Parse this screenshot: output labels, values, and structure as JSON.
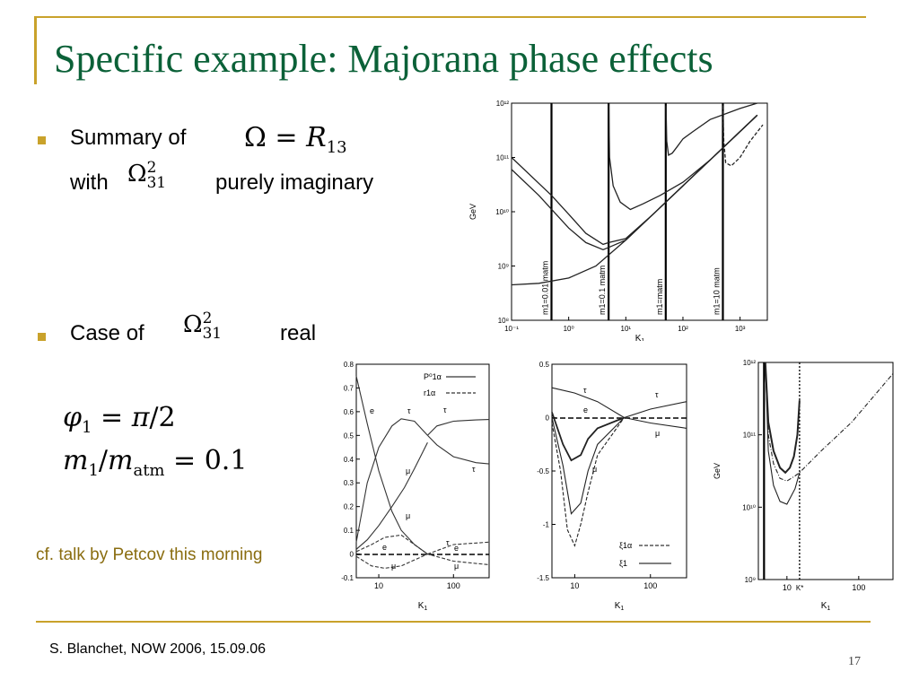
{
  "title": "Specific example: Majorana phase effects",
  "bullets": [
    {
      "pre": "Summary of",
      "math": "Ω = R13"
    },
    {
      "pre": "with",
      "math": "Ω²31",
      "post": "purely imaginary"
    },
    {
      "pre": "Case of",
      "math": "Ω²31",
      "post": "real"
    }
  ],
  "equations": [
    "φ1 = π/2",
    "m1/matm = 0.1"
  ],
  "cf_note": "cf. talk by Petcov this morning",
  "footer": "S. Blanchet, NOW 2006, 15.09.06",
  "page_number": "17",
  "colors": {
    "title": "#0b6138",
    "accent": "#c9a22b",
    "cf": "#8a6d10"
  },
  "chart_data": [
    {
      "type": "line",
      "xlabel": "K1",
      "ylabel": "GeV",
      "x_scale": "log",
      "y_scale": "log",
      "xlim": [
        0.1,
        3000
      ],
      "ylim": [
        100000000.0,
        1000000000000.0
      ],
      "x_ticks": [
        "10⁻¹",
        "10⁰",
        "10¹",
        "10²",
        "10³"
      ],
      "y_ticks": [
        "10⁸",
        "10⁹",
        "10¹⁰",
        "10¹¹",
        "10¹²"
      ],
      "vertical_lines": [
        {
          "x": 0.5,
          "label": "m1=0.01 matm"
        },
        {
          "x": 5,
          "label": "m1=0.1 matm"
        },
        {
          "x": 50,
          "label": "m1=matm"
        },
        {
          "x": 500,
          "label": "m1=10 matm"
        }
      ],
      "series": [
        {
          "x": [
            0.1,
            0.3,
            1,
            3,
            10,
            30,
            100,
            300,
            1000,
            2000
          ],
          "y": [
            450000000.0,
            480000000.0,
            600000000.0,
            1000000000.0,
            3000000000.0,
            9000000000.0,
            30000000000.0,
            90000000000.0,
            300000000000.0,
            600000000000.0
          ]
        },
        {
          "x": [
            0.1,
            0.3,
            1,
            2,
            4,
            5,
            10,
            30,
            100,
            300,
            1000,
            2000
          ],
          "y": [
            60000000000.0,
            20000000000.0,
            5000000000.0,
            2700000000.0,
            2000000000.0,
            2200000000.0,
            3000000000.0,
            9000000000.0,
            30000000000.0,
            90000000000.0,
            300000000000.0,
            600000000000.0
          ]
        },
        {
          "x": [
            0.1,
            0.5,
            1,
            2,
            4,
            5,
            10,
            30,
            100,
            300,
            1000,
            2000
          ],
          "y": [
            100000000000.0,
            20000000000.0,
            9000000000.0,
            4000000000.0,
            2500000000.0,
            2700000000.0,
            3200000000.0,
            9000000000.0,
            30000000000.0,
            90000000000.0,
            300000000000.0,
            600000000000.0
          ]
        },
        {
          "x": [
            5.05,
            5.2,
            6,
            8,
            12,
            20,
            40,
            100,
            300,
            1000,
            2000
          ],
          "y": [
            900000000000.0,
            100000000000.0,
            30000000000.0,
            15000000000.0,
            11000000000.0,
            14000000000.0,
            20000000000.0,
            35000000000.0,
            90000000000.0,
            300000000000.0,
            600000000000.0
          ]
        },
        {
          "x": [
            50.5,
            52,
            56,
            65,
            80,
            100,
            150,
            300,
            1000,
            2000
          ],
          "y": [
            900000000000.0,
            200000000000.0,
            110000000000.0,
            120000000000.0,
            160000000000.0,
            220000000000.0,
            300000000000.0,
            500000000000.0,
            800000000000.0,
            1000000000000.0
          ]
        },
        {
          "x": [
            500.5,
            520,
            560,
            700,
            1000,
            1500,
            2500
          ],
          "y": [
            900000000000.0,
            200000000000.0,
            80000000000.0,
            70000000000.0,
            100000000000.0,
            200000000000.0,
            400000000000.0
          ]
        }
      ]
    },
    {
      "type": "line",
      "xlabel": "K1",
      "x_scale": "log",
      "xlim": [
        5,
        300
      ],
      "ylim": [
        -0.1,
        0.8
      ],
      "x_ticks": [
        "10",
        "100"
      ],
      "y_ticks": [
        "-0.1",
        "0",
        "0.1",
        "0.2",
        "0.3",
        "0.4",
        "0.5",
        "0.6",
        "0.7",
        "0.8"
      ],
      "legend": [
        "P⁰1α",
        "r1α"
      ],
      "annotations": [
        "e",
        "τ",
        "μ",
        "μ",
        "τ",
        "τ",
        "e",
        "μ",
        "τ",
        "e",
        "μ"
      ],
      "series": [
        {
          "x": [
            5,
            7,
            10,
            15,
            20,
            30,
            45
          ],
          "y": [
            0.75,
            0.55,
            0.35,
            0.18,
            0.1,
            0.04,
            0.0
          ]
        },
        {
          "x": [
            5,
            7,
            10,
            15,
            20,
            30,
            45
          ],
          "y": [
            0.05,
            0.3,
            0.45,
            0.54,
            0.57,
            0.56,
            0.5
          ]
        },
        {
          "x": [
            5,
            7,
            10,
            15,
            22,
            30,
            45
          ],
          "y": [
            0.02,
            0.06,
            0.12,
            0.2,
            0.28,
            0.36,
            0.47
          ]
        },
        {
          "x": [
            45,
            60,
            100,
            200,
            300
          ],
          "y": [
            0.5,
            0.54,
            0.56,
            0.565,
            0.567
          ]
        },
        {
          "x": [
            45,
            60,
            100,
            200,
            300
          ],
          "y": [
            0.5,
            0.46,
            0.41,
            0.385,
            0.38
          ]
        }
      ]
    },
    {
      "type": "line",
      "xlabel": "K1",
      "x_scale": "log",
      "xlim": [
        5,
        300
      ],
      "ylim": [
        -1.5,
        0.5
      ],
      "x_ticks": [
        "10",
        "100"
      ],
      "y_ticks": [
        "-1.5",
        "-1",
        "-0.5",
        "0",
        "0.5"
      ],
      "legend": [
        "ξ1α",
        "ξ1"
      ],
      "annotations": [
        "τ",
        "e",
        "μ",
        "τ",
        "μ"
      ],
      "series": [
        {
          "x": [
            5,
            7,
            9,
            12,
            15,
            20,
            45
          ],
          "y": [
            0.05,
            -0.25,
            -0.4,
            -0.35,
            -0.2,
            -0.1,
            0.0
          ]
        },
        {
          "x": [
            5,
            7,
            9,
            12,
            15,
            20,
            45
          ],
          "y": [
            0.0,
            -0.45,
            -0.9,
            -0.8,
            -0.5,
            -0.25,
            0.0
          ]
        },
        {
          "x": [
            5,
            6.5,
            8,
            10,
            12,
            15,
            20,
            45
          ],
          "y": [
            -0.05,
            -0.5,
            -1.05,
            -1.2,
            -1.0,
            -0.7,
            -0.35,
            0.0
          ]
        },
        {
          "x": [
            5,
            10,
            20,
            45,
            100,
            300
          ],
          "y": [
            0.28,
            0.23,
            0.15,
            0.0,
            0.08,
            0.15
          ]
        },
        {
          "x": [
            45,
            100,
            300
          ],
          "y": [
            0.0,
            -0.05,
            -0.1
          ]
        }
      ]
    },
    {
      "type": "line",
      "xlabel": "K1",
      "ylabel": "GeV",
      "x_scale": "log",
      "y_scale": "log",
      "xlim": [
        4,
        300
      ],
      "ylim": [
        1000000000.0,
        1000000000000.0
      ],
      "x_ticks": [
        "10",
        "100"
      ],
      "y_ticks": [
        "10⁹",
        "10¹⁰",
        "10¹¹",
        "10¹²"
      ],
      "vertical_lines": [
        {
          "x": 4.8
        },
        {
          "x": 15,
          "label": "K*"
        }
      ],
      "series": [
        {
          "x": [
            5,
            5.5,
            6.5,
            8,
            9.5,
            11,
            12.5,
            14,
            15
          ],
          "y": [
            1000000000000.0,
            150000000000.0,
            60000000000.0,
            35000000000.0,
            30000000000.0,
            35000000000.0,
            50000000000.0,
            100000000000.0,
            300000000000.0
          ]
        },
        {
          "x": [
            5,
            5.5,
            6.5,
            8,
            10,
            13,
            15,
            30,
            80,
            300
          ],
          "y": [
            1000000000000.0,
            100000000000.0,
            40000000000.0,
            25000000000.0,
            23000000000.0,
            27000000000.0,
            30000000000.0,
            60000000000.0,
            150000000000.0,
            700000000000.0
          ]
        },
        {
          "x": [
            5,
            5.5,
            6.5,
            8,
            10,
            13,
            15
          ],
          "y": [
            1000000000000.0,
            60000000000.0,
            20000000000.0,
            12000000000.0,
            11000000000.0,
            18000000000.0,
            30000000000.0
          ]
        }
      ]
    }
  ]
}
